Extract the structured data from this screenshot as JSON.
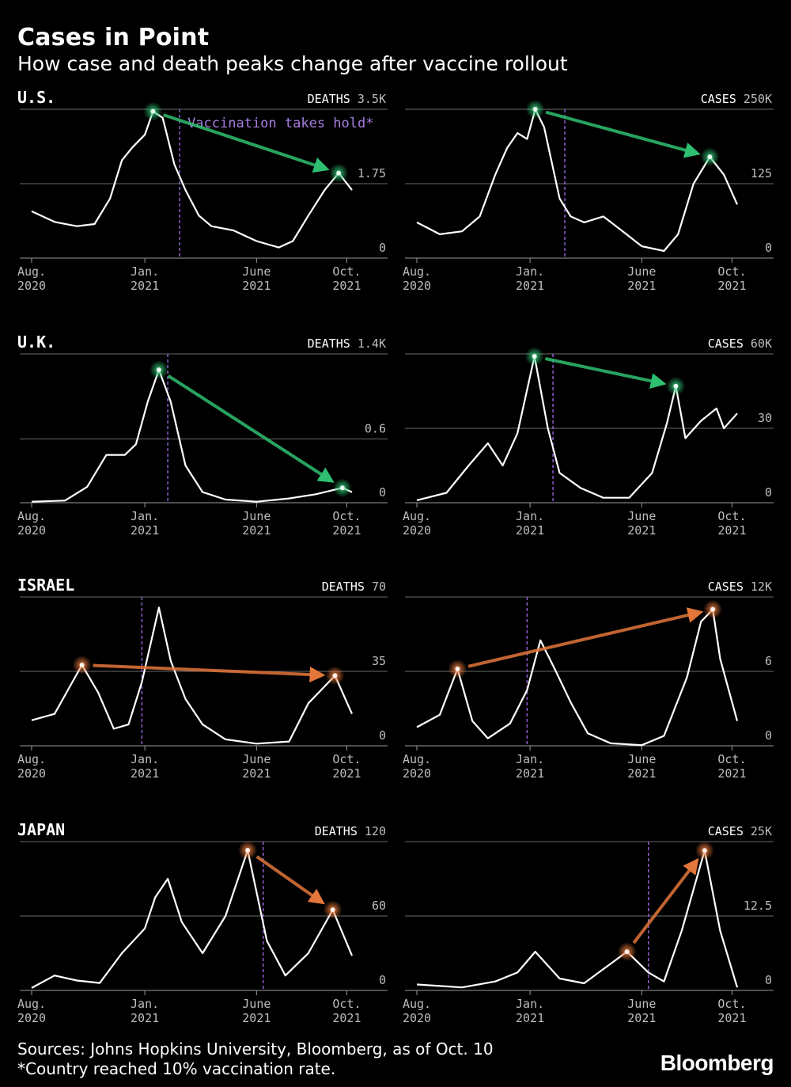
{
  "title": "Cases in Point",
  "subtitle": "How case and death peaks change after vaccine rollout",
  "footer": {
    "sources": "Sources: Johns Hopkins University, Bloomberg, as of Oct. 10",
    "note": "*Country reached 10% vaccination rate."
  },
  "logo": "Bloomberg",
  "colors": {
    "line": "#ffffff",
    "rising": "#2fbf71",
    "falling_or_higher": "#e3763a",
    "vaccine_line": "#8f5fd0",
    "grid": "#6a6a6a"
  },
  "x_ticks": [
    {
      "date": "2020-08-01",
      "label": [
        "Aug.",
        "2020"
      ]
    },
    {
      "date": "2021-01-01",
      "label": [
        "Jan.",
        "2021"
      ]
    },
    {
      "date": "2021-06-01",
      "label": [
        "June",
        "2021"
      ]
    },
    {
      "date": "2021-10-01",
      "label": [
        "Oct.",
        "2021"
      ]
    }
  ],
  "chart_data": [
    {
      "country": "U.S.",
      "metric": "DEATHS",
      "type": "line",
      "top_label": "3.5K",
      "yticks": [
        {
          "v": 1.75,
          "label": "1.75"
        },
        {
          "v": 0,
          "label": "0"
        }
      ],
      "ylim": [
        0,
        3.5
      ],
      "xlim": [
        "2020-08-01",
        "2021-10-08"
      ],
      "vaccine_date": "2021-02-17",
      "annotation": "Vaccination takes hold*",
      "peaks": {
        "from": {
          "x": "2021-01-12",
          "y": 3.45
        },
        "to": {
          "x": "2021-09-20",
          "y": 2.0
        },
        "color": "green"
      },
      "points": [
        [
          "2020-08-01",
          1.1
        ],
        [
          "2020-09-01",
          0.85
        ],
        [
          "2020-10-01",
          0.75
        ],
        [
          "2020-10-25",
          0.8
        ],
        [
          "2020-11-15",
          1.4
        ],
        [
          "2020-12-01",
          2.3
        ],
        [
          "2020-12-15",
          2.6
        ],
        [
          "2021-01-01",
          2.9
        ],
        [
          "2021-01-12",
          3.45
        ],
        [
          "2021-01-25",
          3.3
        ],
        [
          "2021-02-10",
          2.2
        ],
        [
          "2021-02-25",
          1.6
        ],
        [
          "2021-03-15",
          1.0
        ],
        [
          "2021-04-01",
          0.75
        ],
        [
          "2021-05-01",
          0.65
        ],
        [
          "2021-06-01",
          0.4
        ],
        [
          "2021-07-01",
          0.25
        ],
        [
          "2021-07-20",
          0.4
        ],
        [
          "2021-08-10",
          1.0
        ],
        [
          "2021-09-01",
          1.6
        ],
        [
          "2021-09-20",
          2.0
        ],
        [
          "2021-10-08",
          1.6
        ]
      ]
    },
    {
      "country": "",
      "metric": "CASES",
      "type": "line",
      "top_label": "250K",
      "yticks": [
        {
          "v": 125,
          "label": "125"
        },
        {
          "v": 0,
          "label": "0"
        }
      ],
      "ylim": [
        0,
        250
      ],
      "xlim": [
        "2020-08-01",
        "2021-10-08"
      ],
      "vaccine_date": "2021-02-17",
      "peaks": {
        "from": {
          "x": "2021-01-08",
          "y": 250
        },
        "to": {
          "x": "2021-09-01",
          "y": 170
        },
        "color": "green"
      },
      "points": [
        [
          "2020-08-01",
          60
        ],
        [
          "2020-09-01",
          40
        ],
        [
          "2020-10-01",
          45
        ],
        [
          "2020-10-25",
          70
        ],
        [
          "2020-11-15",
          140
        ],
        [
          "2020-12-01",
          185
        ],
        [
          "2020-12-15",
          210
        ],
        [
          "2020-12-28",
          200
        ],
        [
          "2021-01-08",
          250
        ],
        [
          "2021-01-20",
          220
        ],
        [
          "2021-02-10",
          100
        ],
        [
          "2021-02-25",
          70
        ],
        [
          "2021-03-15",
          60
        ],
        [
          "2021-04-10",
          70
        ],
        [
          "2021-05-01",
          50
        ],
        [
          "2021-06-01",
          20
        ],
        [
          "2021-07-01",
          12
        ],
        [
          "2021-07-20",
          40
        ],
        [
          "2021-08-10",
          125
        ],
        [
          "2021-09-01",
          170
        ],
        [
          "2021-09-20",
          140
        ],
        [
          "2021-10-08",
          90
        ]
      ]
    },
    {
      "country": "U.K.",
      "metric": "DEATHS",
      "type": "line",
      "top_label": "1.4K",
      "yticks": [
        {
          "v": 0.6,
          "label": "0.6"
        },
        {
          "v": 0,
          "label": "0"
        }
      ],
      "ylim": [
        0,
        1.4
      ],
      "xlim": [
        "2020-08-01",
        "2021-10-08"
      ],
      "vaccine_date": "2021-02-01",
      "peaks": {
        "from": {
          "x": "2021-01-20",
          "y": 1.25
        },
        "to": {
          "x": "2021-09-25",
          "y": 0.14
        },
        "color": "green"
      },
      "points": [
        [
          "2020-08-01",
          0.01
        ],
        [
          "2020-09-15",
          0.02
        ],
        [
          "2020-10-15",
          0.15
        ],
        [
          "2020-11-10",
          0.45
        ],
        [
          "2020-12-05",
          0.45
        ],
        [
          "2020-12-20",
          0.55
        ],
        [
          "2021-01-05",
          0.95
        ],
        [
          "2021-01-20",
          1.25
        ],
        [
          "2021-02-05",
          0.95
        ],
        [
          "2021-02-25",
          0.35
        ],
        [
          "2021-03-20",
          0.1
        ],
        [
          "2021-04-20",
          0.03
        ],
        [
          "2021-06-01",
          0.01
        ],
        [
          "2021-07-15",
          0.04
        ],
        [
          "2021-08-20",
          0.08
        ],
        [
          "2021-09-25",
          0.14
        ],
        [
          "2021-10-08",
          0.1
        ]
      ]
    },
    {
      "country": "",
      "metric": "CASES",
      "type": "line",
      "top_label": "60K",
      "yticks": [
        {
          "v": 30,
          "label": "30"
        },
        {
          "v": 0,
          "label": "0"
        }
      ],
      "ylim": [
        0,
        60
      ],
      "xlim": [
        "2020-08-01",
        "2021-10-08"
      ],
      "vaccine_date": "2021-02-01",
      "peaks": {
        "from": {
          "x": "2021-01-07",
          "y": 59
        },
        "to": {
          "x": "2021-07-17",
          "y": 47
        },
        "color": "green"
      },
      "points": [
        [
          "2020-08-01",
          1
        ],
        [
          "2020-09-10",
          4
        ],
        [
          "2020-10-10",
          15
        ],
        [
          "2020-11-05",
          24
        ],
        [
          "2020-11-25",
          15
        ],
        [
          "2020-12-15",
          28
        ],
        [
          "2021-01-07",
          59
        ],
        [
          "2021-01-25",
          30
        ],
        [
          "2021-02-10",
          12
        ],
        [
          "2021-03-10",
          6
        ],
        [
          "2021-04-10",
          2
        ],
        [
          "2021-05-15",
          2
        ],
        [
          "2021-06-15",
          12
        ],
        [
          "2021-07-05",
          32
        ],
        [
          "2021-07-17",
          47
        ],
        [
          "2021-07-30",
          26
        ],
        [
          "2021-08-20",
          33
        ],
        [
          "2021-09-10",
          38
        ],
        [
          "2021-09-20",
          30
        ],
        [
          "2021-10-08",
          36
        ]
      ]
    },
    {
      "country": "ISRAEL",
      "metric": "DEATHS",
      "type": "line",
      "top_label": "70",
      "yticks": [
        {
          "v": 35,
          "label": "35"
        },
        {
          "v": 0,
          "label": "0"
        }
      ],
      "ylim": [
        0,
        70
      ],
      "xlim": [
        "2020-08-01",
        "2021-10-08"
      ],
      "vaccine_date": "2020-12-28",
      "peaks": {
        "from": {
          "x": "2020-10-08",
          "y": 38
        },
        "to": {
          "x": "2021-09-15",
          "y": 33
        },
        "color": "orange"
      },
      "points": [
        [
          "2020-08-01",
          12
        ],
        [
          "2020-09-01",
          15
        ],
        [
          "2020-10-08",
          38
        ],
        [
          "2020-10-30",
          25
        ],
        [
          "2020-11-20",
          8
        ],
        [
          "2020-12-10",
          10
        ],
        [
          "2020-12-28",
          30
        ],
        [
          "2021-01-20",
          65
        ],
        [
          "2021-02-05",
          40
        ],
        [
          "2021-02-25",
          22
        ],
        [
          "2021-03-20",
          10
        ],
        [
          "2021-04-20",
          3
        ],
        [
          "2021-06-01",
          1
        ],
        [
          "2021-07-15",
          2
        ],
        [
          "2021-08-10",
          20
        ],
        [
          "2021-09-15",
          33
        ],
        [
          "2021-10-08",
          15
        ]
      ]
    },
    {
      "country": "",
      "metric": "CASES",
      "type": "line",
      "top_label": "12K",
      "yticks": [
        {
          "v": 6,
          "label": "6"
        },
        {
          "v": 0,
          "label": "0"
        }
      ],
      "ylim": [
        0,
        12
      ],
      "xlim": [
        "2020-08-01",
        "2021-10-08"
      ],
      "vaccine_date": "2020-12-28",
      "peaks": {
        "from": {
          "x": "2020-09-25",
          "y": 6.2
        },
        "to": {
          "x": "2021-09-05",
          "y": 11.0
        },
        "color": "orange"
      },
      "points": [
        [
          "2020-08-01",
          1.5
        ],
        [
          "2020-09-01",
          2.5
        ],
        [
          "2020-09-25",
          6.2
        ],
        [
          "2020-10-15",
          2.0
        ],
        [
          "2020-11-05",
          0.6
        ],
        [
          "2020-12-05",
          1.8
        ],
        [
          "2020-12-28",
          4.5
        ],
        [
          "2021-01-15",
          8.5
        ],
        [
          "2021-02-05",
          6.0
        ],
        [
          "2021-02-25",
          3.5
        ],
        [
          "2021-03-20",
          1.0
        ],
        [
          "2021-04-20",
          0.2
        ],
        [
          "2021-06-01",
          0.05
        ],
        [
          "2021-07-01",
          0.8
        ],
        [
          "2021-08-01",
          5.5
        ],
        [
          "2021-08-20",
          10.0
        ],
        [
          "2021-09-05",
          11.0
        ],
        [
          "2021-09-15",
          7.0
        ],
        [
          "2021-10-08",
          2.0
        ]
      ]
    },
    {
      "country": "JAPAN",
      "metric": "DEATHS",
      "type": "line",
      "top_label": "120",
      "yticks": [
        {
          "v": 60,
          "label": "60"
        },
        {
          "v": 0,
          "label": "0"
        }
      ],
      "ylim": [
        0,
        120
      ],
      "xlim": [
        "2020-08-01",
        "2021-10-08"
      ],
      "vaccine_date": "2021-06-10",
      "peaks": {
        "from": {
          "x": "2021-05-20",
          "y": 113
        },
        "to": {
          "x": "2021-09-12",
          "y": 65
        },
        "color": "orange"
      },
      "points": [
        [
          "2020-08-01",
          2
        ],
        [
          "2020-09-01",
          12
        ],
        [
          "2020-10-01",
          8
        ],
        [
          "2020-11-01",
          6
        ],
        [
          "2020-12-01",
          30
        ],
        [
          "2021-01-01",
          50
        ],
        [
          "2021-01-15",
          75
        ],
        [
          "2021-02-01",
          90
        ],
        [
          "2021-02-20",
          55
        ],
        [
          "2021-03-20",
          30
        ],
        [
          "2021-04-20",
          60
        ],
        [
          "2021-05-20",
          113
        ],
        [
          "2021-06-15",
          40
        ],
        [
          "2021-07-10",
          12
        ],
        [
          "2021-08-10",
          30
        ],
        [
          "2021-09-12",
          65
        ],
        [
          "2021-10-08",
          28
        ]
      ]
    },
    {
      "country": "",
      "metric": "CASES",
      "type": "line",
      "top_label": "25K",
      "yticks": [
        {
          "v": 12.5,
          "label": "12.5"
        },
        {
          "v": 0,
          "label": "0"
        }
      ],
      "ylim": [
        0,
        25
      ],
      "xlim": [
        "2020-08-01",
        "2021-10-08"
      ],
      "vaccine_date": "2021-06-10",
      "peaks": {
        "from": {
          "x": "2021-05-12",
          "y": 6.5
        },
        "to": {
          "x": "2021-08-25",
          "y": 23.5
        },
        "color": "orange"
      },
      "points": [
        [
          "2020-08-01",
          1.0
        ],
        [
          "2020-10-01",
          0.5
        ],
        [
          "2020-11-15",
          1.5
        ],
        [
          "2020-12-15",
          3.0
        ],
        [
          "2021-01-08",
          6.5
        ],
        [
          "2021-02-10",
          2.0
        ],
        [
          "2021-03-15",
          1.2
        ],
        [
          "2021-04-20",
          4.5
        ],
        [
          "2021-05-12",
          6.5
        ],
        [
          "2021-06-10",
          3.0
        ],
        [
          "2021-07-01",
          1.5
        ],
        [
          "2021-07-25",
          10.0
        ],
        [
          "2021-08-25",
          23.5
        ],
        [
          "2021-09-15",
          10.0
        ],
        [
          "2021-10-08",
          0.5
        ]
      ]
    }
  ]
}
